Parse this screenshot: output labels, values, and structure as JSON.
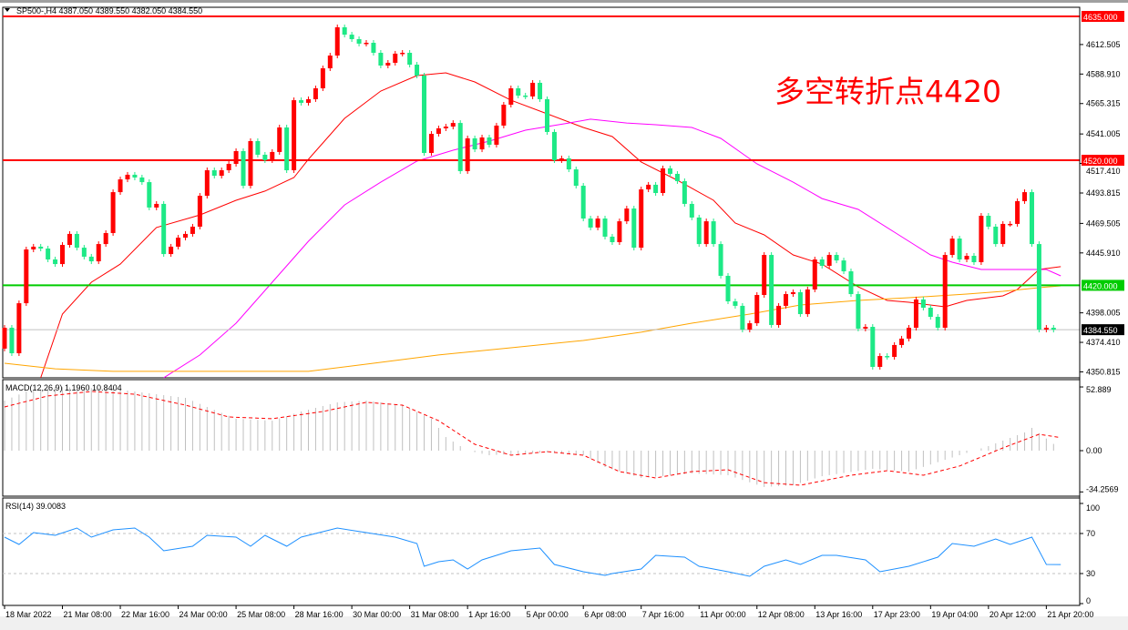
{
  "main_header": "SP500-,H4  4387.050 4389.550 4382.050 4384.550",
  "macd_header": "MACD(12,26,9) 1.1960 10.8404",
  "rsi_header": "RSI(14) 39.0083",
  "annotation": "多空转折点4420",
  "colors": {
    "up": "#ff0000",
    "down": "#1de986",
    "ma_fast": "#ff0000",
    "ma_mid": "#ff00ff",
    "ma_slow": "#ffa500",
    "support": "#00cc00",
    "resistance": "#ff0000",
    "macd_hist": "#c0c0c0",
    "macd_signal": "#ff0000",
    "rsi": "#1e90ff"
  },
  "chart_data": [
    {
      "type": "candlestick",
      "symbol": "SP500-",
      "timeframe": "H4",
      "ylim": [
        4345,
        4640
      ],
      "y_ticks": [
        "4612.505",
        "4588.910",
        "4565.315",
        "4541.005",
        "4517.410",
        "4493.815",
        "4469.505",
        "4445.910",
        "4398.005",
        "4374.410",
        "4350.815"
      ],
      "x_ticks": [
        "18 Mar 2022",
        "21 Mar 08:00",
        "22 Mar 16:00",
        "24 Mar 00:00",
        "25 Mar 08:00",
        "28 Mar 16:00",
        "30 Mar 00:00",
        "31 Mar 08:00",
        "1 Apr 16:00",
        "5 Apr 00:00",
        "6 Apr 08:00",
        "7 Apr 16:00",
        "11 Apr 00:00",
        "12 Apr 08:00",
        "13 Apr 16:00",
        "17 Apr 23:00",
        "19 Apr 04:00",
        "20 Apr 12:00",
        "21 Apr 20:00"
      ],
      "first_open": 4369.4,
      "close": [
        4386.1,
        4365.7,
        4405.7,
        4448.7,
        4450.9,
        4449.4,
        4440.7,
        4437.0,
        4452.3,
        4461.1,
        4450.1,
        4442.9,
        4439.2,
        4453.0,
        4461.8,
        4494.5,
        4504.7,
        4508.4,
        4506.2,
        4502.5,
        4482.2,
        4485.1,
        4445.0,
        4450.9,
        4458.1,
        4461.1,
        4466.9,
        4491.6,
        4512.0,
        4507.6,
        4512.0,
        4517.1,
        4527.3,
        4499.6,
        4535.3,
        4524.4,
        4520.0,
        4526.6,
        4546.2,
        4512.0,
        4568.0,
        4565.9,
        4568.8,
        4577.5,
        4593.5,
        4603.7,
        4626.3,
        4620.4,
        4616.8,
        4613.2,
        4613.9,
        4605.9,
        4595.7,
        4597.9,
        4605.2,
        4605.9,
        4596.4,
        4587.7,
        4525.8,
        4541.1,
        4545.5,
        4546.9,
        4549.8,
        4511.3,
        4537.5,
        4528.7,
        4538.2,
        4532.4,
        4547.7,
        4564.4,
        4577.5,
        4571.7,
        4571.0,
        4581.9,
        4568.8,
        4542.6,
        4520.0,
        4521.5,
        4512.7,
        4499.6,
        4473.4,
        4466.2,
        4473.4,
        4458.9,
        4454.5,
        4471.2,
        4481.4,
        4450.1,
        4496.7,
        4500.4,
        4493.8,
        4513.5,
        4509.1,
        4503.3,
        4485.1,
        4474.2,
        4453.0,
        4471.2,
        4453.0,
        4427.6,
        4407.2,
        4403.6,
        4384.6,
        4389.7,
        4412.3,
        4444.3,
        4388.3,
        4403.6,
        4413.0,
        4414.5,
        4397.0,
        4416.7,
        4440.7,
        4435.6,
        4444.3,
        4439.9,
        4431.2,
        4413.0,
        4385.4,
        4386.8,
        4354.8,
        4363.5,
        4362.8,
        4372.3,
        4377.4,
        4386.1,
        4408.7,
        4402.1,
        4394.8,
        4386.1,
        4444.3,
        4457.4,
        4440.7,
        4443.6,
        4438.5,
        4475.6,
        4466.9,
        4453.0,
        4469.1,
        4469.1,
        4487.3,
        4494.5,
        4453.0,
        4384.6,
        4386.1,
        4384.55
      ],
      "moving_averages": [
        {
          "key": "ma_fast",
          "points": [
            [
              5,
              4346.1
            ],
            [
              8,
              4397.0
            ],
            [
              12,
              4422.5
            ],
            [
              16,
              4437.0
            ],
            [
              21,
              4466.2
            ],
            [
              27,
              4476.3
            ],
            [
              32,
              4488.0
            ],
            [
              36,
              4495.3
            ],
            [
              40,
              4506.2
            ],
            [
              42,
              4520.7
            ],
            [
              47,
              4553.5
            ],
            [
              52,
              4575.3
            ],
            [
              57,
              4587.7
            ],
            [
              61,
              4589.9
            ],
            [
              65,
              4582.6
            ],
            [
              70,
              4568.0
            ],
            [
              75,
              4557.1
            ],
            [
              80,
              4546.2
            ],
            [
              84,
              4538.9
            ],
            [
              88,
              4518.6
            ],
            [
              93,
              4504.0
            ],
            [
              98,
              4488.0
            ],
            [
              101,
              4469.8
            ],
            [
              105,
              4460.3
            ],
            [
              109,
              4444.3
            ],
            [
              113,
              4437.0
            ],
            [
              118,
              4418.8
            ],
            [
              122,
              4407.9
            ],
            [
              125,
              4406.5
            ],
            [
              130,
              4402.8
            ],
            [
              133,
              4407.9
            ],
            [
              138,
              4411.6
            ],
            [
              140,
              4416.7
            ],
            [
              143,
              4432.7
            ],
            [
              146,
              4434.9
            ]
          ]
        },
        {
          "key": "ma_mid",
          "points": [
            [
              22,
              4346.1
            ],
            [
              27,
              4364.3
            ],
            [
              32,
              4389.7
            ],
            [
              37,
              4422.5
            ],
            [
              42,
              4455.2
            ],
            [
              47,
              4484.3
            ],
            [
              52,
              4502.5
            ],
            [
              57,
              4519.3
            ],
            [
              62,
              4528.0
            ],
            [
              67,
              4535.3
            ],
            [
              72,
              4544.0
            ],
            [
              78,
              4549.8
            ],
            [
              81,
              4552.8
            ],
            [
              86,
              4549.8
            ],
            [
              90,
              4548.4
            ],
            [
              95,
              4546.2
            ],
            [
              99,
              4537.5
            ],
            [
              104,
              4517.1
            ],
            [
              109,
              4502.5
            ],
            [
              113,
              4489.4
            ],
            [
              118,
              4480.7
            ],
            [
              123,
              4462.5
            ],
            [
              128,
              4444.3
            ],
            [
              131,
              4438.5
            ],
            [
              135,
              4432.7
            ],
            [
              144,
              4432.7
            ],
            [
              146,
              4427.6
            ]
          ]
        },
        {
          "key": "ma_slow",
          "points": [
            [
              0,
              4357.7
            ],
            [
              7,
              4353.3
            ],
            [
              15,
              4351.2
            ],
            [
              25,
              4351.2
            ],
            [
              42,
              4351.2
            ],
            [
              50,
              4357.0
            ],
            [
              60,
              4364.3
            ],
            [
              70,
              4370.1
            ],
            [
              80,
              4375.9
            ],
            [
              88,
              4382.5
            ],
            [
              95,
              4389.7
            ],
            [
              103,
              4397.0
            ],
            [
              110,
              4404.3
            ],
            [
              118,
              4407.9
            ],
            [
              125,
              4410.1
            ],
            [
              133,
              4413.0
            ],
            [
              138,
              4415.2
            ],
            [
              143,
              4418.1
            ],
            [
              146,
              4419.6
            ]
          ]
        }
      ],
      "levels": [
        {
          "value": 4635.0,
          "label": "4635.000",
          "key": "resistance"
        },
        {
          "value": 4520.0,
          "label": "4520.000",
          "key": "resistance"
        },
        {
          "value": 4420.0,
          "label": "4420.000",
          "key": "support"
        },
        {
          "value": 4384.55,
          "label": "4384.550",
          "key": "current"
        }
      ]
    },
    {
      "type": "bar",
      "name": "MACD(12,26,9)",
      "ylim": [
        -34.2569,
        52.889
      ],
      "y_ticks": [
        "52.889",
        "0.00",
        "-34.2569"
      ],
      "histogram_points": [
        [
          0,
          41.6
        ],
        [
          3,
          49.1
        ],
        [
          7,
          52.9
        ],
        [
          15,
          51.4
        ],
        [
          25,
          43.8
        ],
        [
          28,
          36.3
        ],
        [
          32,
          26.5
        ],
        [
          37,
          24.9
        ],
        [
          41,
          32.5
        ],
        [
          46,
          40.1
        ],
        [
          50,
          41.6
        ],
        [
          55,
          37.8
        ],
        [
          59,
          26.5
        ],
        [
          61,
          11.3
        ],
        [
          64,
          0
        ],
        [
          67,
          -3.8
        ],
        [
          75,
          -1.5
        ],
        [
          80,
          -3.8
        ],
        [
          83,
          -13.6
        ],
        [
          88,
          -22.7
        ],
        [
          95,
          -18.9
        ],
        [
          100,
          -20.4
        ],
        [
          105,
          -30.2
        ],
        [
          109,
          -28.7
        ],
        [
          113,
          -21.2
        ],
        [
          120,
          -15.1
        ],
        [
          125,
          -17.4
        ],
        [
          130,
          -7.6
        ],
        [
          136,
          3.8
        ],
        [
          141,
          15.1
        ],
        [
          142,
          18.9
        ],
        [
          146,
          1.196
        ]
      ],
      "signal_points": [
        [
          0,
          36.3
        ],
        [
          6,
          45.4
        ],
        [
          12,
          49.1
        ],
        [
          18,
          46.9
        ],
        [
          25,
          37.8
        ],
        [
          31,
          28.0
        ],
        [
          37,
          26.5
        ],
        [
          44,
          32.5
        ],
        [
          50,
          40.1
        ],
        [
          55,
          37.8
        ],
        [
          60,
          24.9
        ],
        [
          65,
          5.3
        ],
        [
          70,
          -3.8
        ],
        [
          75,
          -0.8
        ],
        [
          80,
          -3.8
        ],
        [
          85,
          -17.4
        ],
        [
          90,
          -22.7
        ],
        [
          95,
          -17.4
        ],
        [
          100,
          -15.9
        ],
        [
          105,
          -26.5
        ],
        [
          110,
          -28.7
        ],
        [
          117,
          -20.4
        ],
        [
          122,
          -16.6
        ],
        [
          127,
          -20.4
        ],
        [
          132,
          -12.8
        ],
        [
          138,
          2.3
        ],
        [
          143,
          13.6
        ],
        [
          146,
          10.8404
        ]
      ]
    },
    {
      "type": "line",
      "name": "RSI(14)",
      "ylim": [
        0,
        100
      ],
      "y_ticks": [
        "100",
        "70",
        "30",
        "0"
      ],
      "levels": [
        70,
        30
      ],
      "points": [
        [
          0,
          66.4
        ],
        [
          2,
          59.1
        ],
        [
          4,
          70.9
        ],
        [
          7,
          68.2
        ],
        [
          10,
          75.5
        ],
        [
          12,
          66.4
        ],
        [
          15,
          73.6
        ],
        [
          18,
          75.5
        ],
        [
          20,
          66.4
        ],
        [
          22,
          52.7
        ],
        [
          26,
          57.3
        ],
        [
          28,
          68.2
        ],
        [
          32,
          66.4
        ],
        [
          34,
          57.3
        ],
        [
          36,
          68.2
        ],
        [
          39,
          57.3
        ],
        [
          41,
          66.4
        ],
        [
          46,
          75.5
        ],
        [
          50,
          70.9
        ],
        [
          54,
          66.4
        ],
        [
          57,
          60.0
        ],
        [
          58,
          37.3
        ],
        [
          60,
          41.8
        ],
        [
          62,
          43.6
        ],
        [
          64,
          34.5
        ],
        [
          66,
          43.6
        ],
        [
          70,
          52.7
        ],
        [
          74,
          55.5
        ],
        [
          76,
          39.1
        ],
        [
          80,
          31.8
        ],
        [
          83,
          28.2
        ],
        [
          84,
          30.0
        ],
        [
          88,
          34.5
        ],
        [
          90,
          48.2
        ],
        [
          94,
          46.4
        ],
        [
          96,
          37.3
        ],
        [
          100,
          31.8
        ],
        [
          103,
          27.3
        ],
        [
          105,
          37.3
        ],
        [
          108,
          43.6
        ],
        [
          110,
          39.1
        ],
        [
          113,
          48.2
        ],
        [
          115,
          48.2
        ],
        [
          119,
          43.6
        ],
        [
          121,
          31.8
        ],
        [
          125,
          37.3
        ],
        [
          129,
          46.4
        ],
        [
          131,
          60.0
        ],
        [
          134,
          57.3
        ],
        [
          137,
          64.5
        ],
        [
          139,
          59.1
        ],
        [
          142,
          66.4
        ],
        [
          144,
          39.1
        ],
        [
          146,
          39.0083
        ]
      ]
    }
  ]
}
